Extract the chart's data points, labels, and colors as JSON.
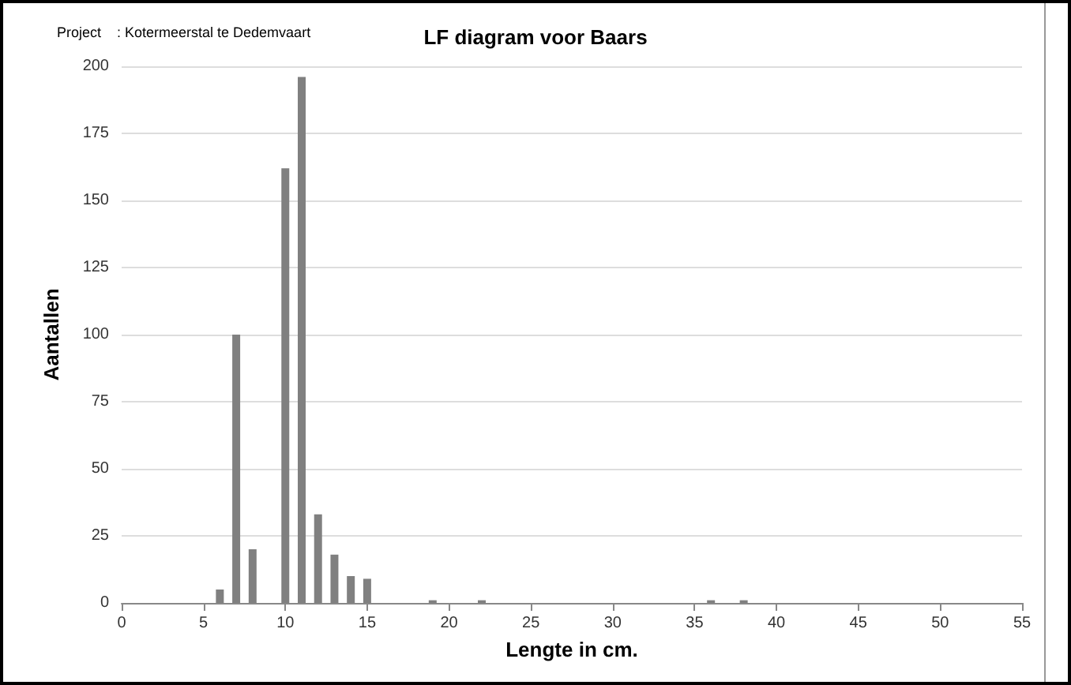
{
  "chart_data": {
    "type": "bar",
    "title": "LF diagram voor Baars",
    "annotations": [
      "Project    : Kotermeerstal te Dedemvaart"
    ],
    "xlabel": "Lengte in cm.",
    "ylabel": "Aantallen",
    "x": [
      6,
      7,
      8,
      10,
      11,
      12,
      13,
      14,
      15,
      19,
      22,
      36,
      38
    ],
    "values": [
      5,
      100,
      20,
      162,
      196,
      33,
      18,
      10,
      9,
      1,
      1,
      1,
      1
    ],
    "color": "#808080",
    "xlim": [
      0,
      55
    ],
    "xticks": [
      0,
      5,
      10,
      15,
      20,
      25,
      30,
      35,
      40,
      45,
      50,
      55
    ],
    "ylim": [
      0,
      200
    ],
    "yticks": [
      0,
      25,
      50,
      75,
      100,
      125,
      150,
      175,
      200
    ],
    "grid": "y"
  }
}
